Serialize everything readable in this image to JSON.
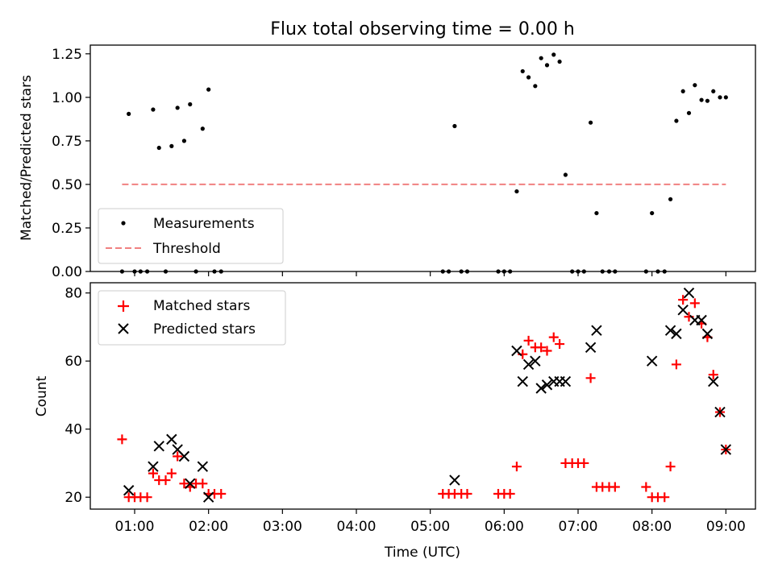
{
  "title": "Flux total observing time = 0.00 h",
  "chart_data": [
    {
      "type": "scatter",
      "ylabel": "Matched/Predicted stars",
      "ylim": [
        0,
        1.3
      ],
      "yticks": [
        "0.00",
        "0.25",
        "0.50",
        "0.75",
        "1.00",
        "1.25"
      ],
      "legend_position": "bottom-left",
      "x_unit": "hours since 00:00 UTC",
      "series": [
        {
          "name": "Measurements",
          "marker": "dot",
          "color": "#000000",
          "points": [
            [
              0.83,
              0
            ],
            [
              0.92,
              0.905
            ],
            [
              1.0,
              0
            ],
            [
              1.08,
              0
            ],
            [
              1.17,
              0
            ],
            [
              1.25,
              0.93
            ],
            [
              1.33,
              0.71
            ],
            [
              1.42,
              0
            ],
            [
              1.5,
              0.72
            ],
            [
              1.58,
              0.94
            ],
            [
              1.67,
              0.75
            ],
            [
              1.75,
              0.96
            ],
            [
              1.83,
              0
            ],
            [
              1.92,
              0.82
            ],
            [
              2.0,
              1.045
            ],
            [
              2.08,
              0
            ],
            [
              2.17,
              0
            ],
            [
              5.17,
              0
            ],
            [
              5.25,
              0
            ],
            [
              5.33,
              0.835
            ],
            [
              5.42,
              0
            ],
            [
              5.5,
              0
            ],
            [
              5.92,
              0
            ],
            [
              6.0,
              0
            ],
            [
              6.08,
              0
            ],
            [
              6.17,
              0.46
            ],
            [
              6.25,
              1.15
            ],
            [
              6.33,
              1.115
            ],
            [
              6.42,
              1.065
            ],
            [
              6.5,
              1.225
            ],
            [
              6.58,
              1.185
            ],
            [
              6.67,
              1.245
            ],
            [
              6.75,
              1.205
            ],
            [
              6.83,
              0.555
            ],
            [
              6.92,
              0
            ],
            [
              7.0,
              0
            ],
            [
              7.08,
              0
            ],
            [
              7.17,
              0.855
            ],
            [
              7.25,
              0.335
            ],
            [
              7.33,
              0
            ],
            [
              7.42,
              0
            ],
            [
              7.5,
              0
            ],
            [
              7.92,
              0
            ],
            [
              8.0,
              0.335
            ],
            [
              8.08,
              0
            ],
            [
              8.17,
              0
            ],
            [
              8.25,
              0.415
            ],
            [
              8.33,
              0.865
            ],
            [
              8.42,
              1.035
            ],
            [
              8.5,
              0.91
            ],
            [
              8.58,
              1.07
            ],
            [
              8.67,
              0.985
            ],
            [
              8.75,
              0.98
            ],
            [
              8.83,
              1.035
            ],
            [
              8.92,
              1.0
            ],
            [
              9.0,
              1.0
            ]
          ]
        },
        {
          "name": "Threshold",
          "marker": "dashed-line",
          "color": "#f08080",
          "points": [
            [
              0.83,
              0.5
            ],
            [
              9.0,
              0.5
            ]
          ]
        }
      ]
    },
    {
      "type": "scatter",
      "ylabel": "Count",
      "xlabel": "Time (UTC)",
      "ylim": [
        16.5,
        83
      ],
      "yticks": [
        "20",
        "40",
        "60",
        "80"
      ],
      "xlim": [
        0.4,
        9.4
      ],
      "xticks": [
        "01:00",
        "02:00",
        "03:00",
        "04:00",
        "05:00",
        "06:00",
        "07:00",
        "08:00",
        "09:00"
      ],
      "legend_position": "top-left",
      "x_unit": "hours since 00:00 UTC",
      "series": [
        {
          "name": "Matched stars",
          "marker": "plus",
          "color": "#ff0000",
          "points": [
            [
              0.83,
              37
            ],
            [
              0.92,
              20
            ],
            [
              1.0,
              20
            ],
            [
              1.08,
              20
            ],
            [
              1.17,
              20
            ],
            [
              1.25,
              27
            ],
            [
              1.33,
              25
            ],
            [
              1.42,
              25
            ],
            [
              1.5,
              27
            ],
            [
              1.58,
              32
            ],
            [
              1.67,
              24
            ],
            [
              1.75,
              23
            ],
            [
              1.83,
              24
            ],
            [
              1.92,
              24
            ],
            [
              2.0,
              21
            ],
            [
              2.08,
              21
            ],
            [
              2.17,
              21
            ],
            [
              5.17,
              21
            ],
            [
              5.25,
              21
            ],
            [
              5.33,
              21
            ],
            [
              5.42,
              21
            ],
            [
              5.5,
              21
            ],
            [
              5.92,
              21
            ],
            [
              6.0,
              21
            ],
            [
              6.08,
              21
            ],
            [
              6.17,
              29
            ],
            [
              6.25,
              62
            ],
            [
              6.33,
              66
            ],
            [
              6.42,
              64
            ],
            [
              6.5,
              64
            ],
            [
              6.58,
              63
            ],
            [
              6.67,
              67
            ],
            [
              6.75,
              65
            ],
            [
              6.83,
              30
            ],
            [
              6.92,
              30
            ],
            [
              7.0,
              30
            ],
            [
              7.08,
              30
            ],
            [
              7.17,
              55
            ],
            [
              7.25,
              23
            ],
            [
              7.33,
              23
            ],
            [
              7.42,
              23
            ],
            [
              7.5,
              23
            ],
            [
              7.92,
              23
            ],
            [
              8.0,
              20
            ],
            [
              8.08,
              20
            ],
            [
              8.17,
              20
            ],
            [
              8.25,
              29
            ],
            [
              8.33,
              59
            ],
            [
              8.42,
              78
            ],
            [
              8.5,
              73
            ],
            [
              8.58,
              77
            ],
            [
              8.67,
              71
            ],
            [
              8.75,
              67
            ],
            [
              8.83,
              56
            ],
            [
              8.92,
              45
            ],
            [
              9.0,
              34
            ]
          ]
        },
        {
          "name": "Predicted stars",
          "marker": "x",
          "color": "#000000",
          "points": [
            [
              0.92,
              22
            ],
            [
              1.25,
              29
            ],
            [
              1.33,
              35
            ],
            [
              1.5,
              37
            ],
            [
              1.58,
              34
            ],
            [
              1.67,
              32
            ],
            [
              1.75,
              24
            ],
            [
              1.92,
              29
            ],
            [
              2.0,
              20
            ],
            [
              5.33,
              25
            ],
            [
              6.17,
              63
            ],
            [
              6.25,
              54
            ],
            [
              6.33,
              59
            ],
            [
              6.42,
              60
            ],
            [
              6.5,
              52
            ],
            [
              6.58,
              53
            ],
            [
              6.67,
              54
            ],
            [
              6.75,
              54
            ],
            [
              6.83,
              54
            ],
            [
              7.17,
              64
            ],
            [
              7.25,
              69
            ],
            [
              8.0,
              60
            ],
            [
              8.25,
              69
            ],
            [
              8.33,
              68
            ],
            [
              8.42,
              75
            ],
            [
              8.5,
              80
            ],
            [
              8.58,
              72
            ],
            [
              8.67,
              72
            ],
            [
              8.75,
              68
            ],
            [
              8.83,
              54
            ],
            [
              8.92,
              45
            ],
            [
              9.0,
              34
            ]
          ]
        }
      ]
    }
  ]
}
